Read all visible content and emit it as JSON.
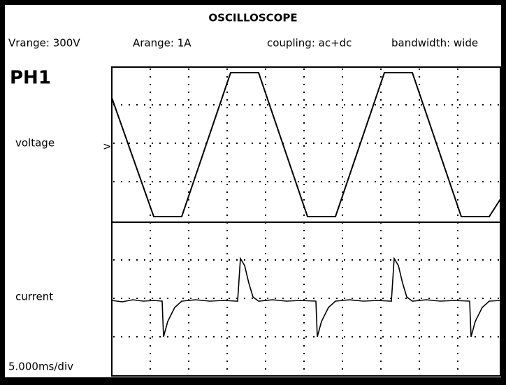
{
  "screen": {
    "title": "OSCILLOSCOPE",
    "settings": [
      "Vrange: 300V",
      "Arange: 1A",
      "coupling: ac+dc",
      "bandwidth: wide"
    ],
    "channel": "PH1",
    "traces": [
      "voltage",
      "current"
    ],
    "marker": ">",
    "timebase": "5.000ms/div"
  }
}
